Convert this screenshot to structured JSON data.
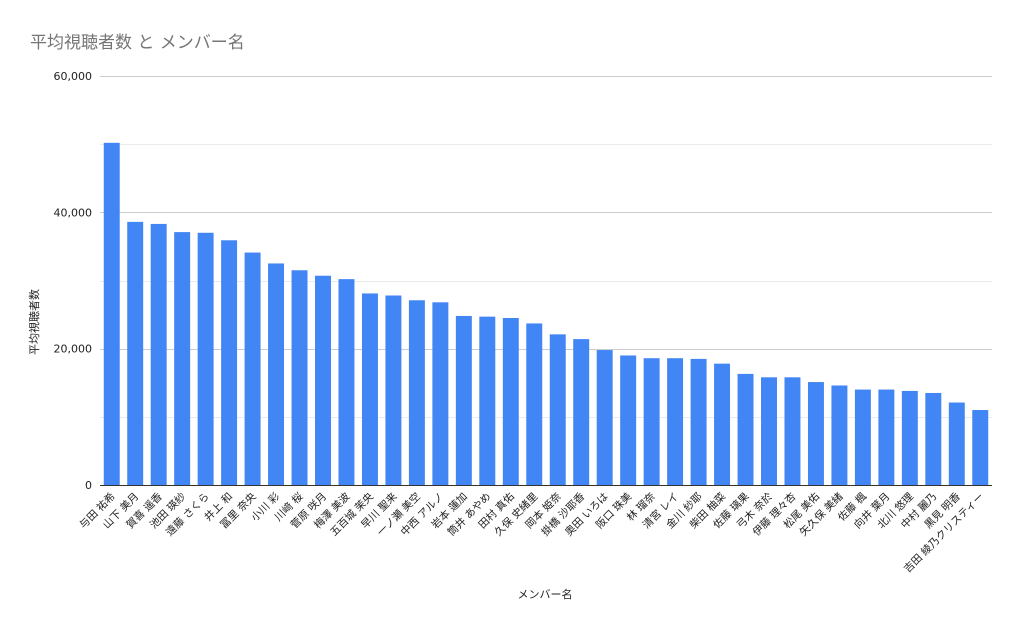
{
  "chart_data": {
    "type": "bar",
    "title": "平均視聴者数 と メンバー名",
    "xlabel": "メンバー名",
    "ylabel": "平均視聴者数",
    "ylim": [
      0,
      60000
    ],
    "yticks": [
      0,
      20000,
      40000,
      60000
    ],
    "ytick_labels": [
      "0",
      "20,000",
      "40,000",
      "60,000"
    ],
    "grid": true,
    "bar_color": "#4285f4",
    "categories": [
      "与田 祐希",
      "山下 美月",
      "賀喜 遥香",
      "池田 瑛紗",
      "遠藤 さくら",
      "井上 和",
      "冨里 奈央",
      "小川 彩",
      "川﨑 桜",
      "菅原 咲月",
      "梅澤 美波",
      "五百城 茉央",
      "早川 聖来",
      "一ノ瀬 美空",
      "中西 アルノ",
      "岩本 蓮加",
      "筒井 あやめ",
      "田村 真佑",
      "久保 史緒里",
      "岡本 姫奈",
      "掛橋 沙耶香",
      "奥田 いろは",
      "阪口 珠美",
      "林 瑠奈",
      "清宮 レイ",
      "金川 紗耶",
      "柴田 柚菜",
      "佐藤 璃果",
      "弓木 奈於",
      "伊藤 理々杏",
      "松尾 美佑",
      "矢久保 美緒",
      "佐藤 楓",
      "向井 葉月",
      "北川 悠理",
      "中村 麗乃",
      "黒見 明香",
      "吉田 綾乃クリスティー"
    ],
    "values": [
      50200,
      38600,
      38300,
      37100,
      37000,
      35900,
      34100,
      32500,
      31500,
      30700,
      30200,
      28100,
      27800,
      27100,
      26800,
      24800,
      24700,
      24500,
      23700,
      22100,
      21400,
      19800,
      19000,
      18600,
      18600,
      18500,
      17800,
      16300,
      15800,
      15800,
      15100,
      14600,
      14000,
      14000,
      13800,
      13500,
      12100,
      11000
    ]
  }
}
